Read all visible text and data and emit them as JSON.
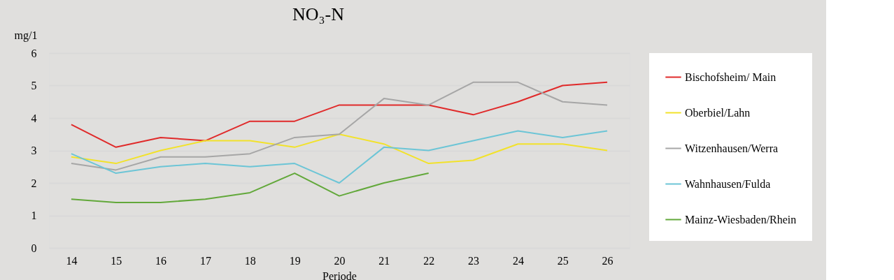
{
  "chart_data": {
    "type": "line",
    "title": "NO₃-N",
    "xlabel": "Periode",
    "ylabel": "mg/1",
    "categories": [
      "14",
      "15",
      "16",
      "17",
      "18",
      "19",
      "20",
      "21",
      "22",
      "23",
      "24",
      "25",
      "26"
    ],
    "ylim": [
      0,
      6
    ],
    "yticks": [
      0,
      1,
      2,
      3,
      4,
      5,
      6
    ],
    "grid": "y",
    "legend": "right",
    "marker": "none",
    "line_style": "solid",
    "series": [
      {
        "name": "Bischofsheim/ Main",
        "color": "#e02a2a",
        "values": [
          3.8,
          3.1,
          3.4,
          3.3,
          3.9,
          3.9,
          4.4,
          4.4,
          4.4,
          4.1,
          4.5,
          5.0,
          5.1
        ]
      },
      {
        "name": "Oberbiel/Lahn",
        "color": "#f2e22a",
        "values": [
          2.8,
          2.6,
          3.0,
          3.3,
          3.3,
          3.1,
          3.5,
          3.2,
          2.6,
          2.7,
          3.2,
          3.2,
          3.0
        ]
      },
      {
        "name": "Witzenhausen/Werra",
        "color": "#a6a6a6",
        "values": [
          2.6,
          2.4,
          2.8,
          2.8,
          2.9,
          3.4,
          3.5,
          4.6,
          4.4,
          5.1,
          5.1,
          4.5,
          4.4
        ]
      },
      {
        "name": "Wahnhausen/Fulda",
        "color": "#6cc5d6",
        "values": [
          2.9,
          2.3,
          2.5,
          2.6,
          2.5,
          2.6,
          2.0,
          3.1,
          3.0,
          3.3,
          3.6,
          3.4,
          3.6
        ]
      },
      {
        "name": "Mainz-Wiesbaden/Rhein",
        "color": "#62a83a",
        "values": [
          1.5,
          1.4,
          1.4,
          1.5,
          1.7,
          2.3,
          1.6,
          2.0,
          2.3,
          null,
          null,
          null,
          null
        ]
      }
    ]
  }
}
